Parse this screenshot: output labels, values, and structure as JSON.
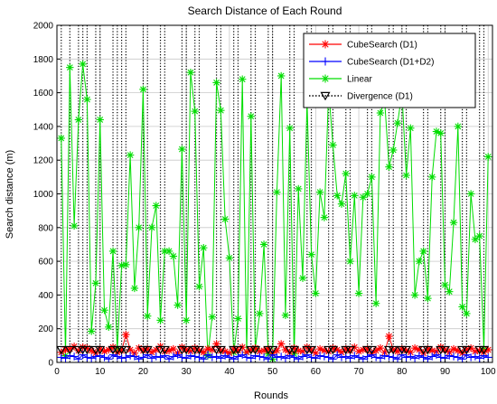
{
  "chart_data": {
    "type": "line",
    "title": "Search Distance of Each Round",
    "xlabel": "Rounds",
    "ylabel": "Search distance (m)",
    "xlim": [
      0,
      101
    ],
    "ylim": [
      0,
      2000
    ],
    "xticks": [
      0,
      10,
      20,
      30,
      40,
      50,
      60,
      70,
      80,
      90,
      100
    ],
    "yticks": [
      0,
      200,
      400,
      600,
      800,
      1000,
      1200,
      1400,
      1600,
      1800,
      2000
    ],
    "grid": true,
    "legend_position": "top-right",
    "divergence_rounds": [
      1,
      3,
      5,
      6,
      7,
      9,
      10,
      13,
      14,
      15,
      16,
      20,
      21,
      24,
      25,
      29,
      30,
      32,
      33,
      37,
      38,
      41,
      42,
      45,
      46,
      49,
      50,
      54,
      55,
      58,
      59,
      63,
      64,
      67,
      68,
      72,
      73,
      77,
      78,
      80,
      81,
      85,
      86,
      89,
      90,
      94,
      95,
      98,
      99
    ],
    "series": [
      {
        "name": "CubeSearch (D1)",
        "color": "#ff0000",
        "marker": "asterisk",
        "x": [
          1,
          2,
          3,
          4,
          5,
          6,
          7,
          8,
          9,
          10,
          11,
          12,
          13,
          14,
          15,
          16,
          17,
          18,
          19,
          20,
          21,
          22,
          23,
          24,
          25,
          26,
          27,
          28,
          29,
          30,
          31,
          32,
          33,
          34,
          35,
          36,
          37,
          38,
          39,
          40,
          41,
          42,
          43,
          44,
          45,
          46,
          47,
          48,
          49,
          50,
          51,
          52,
          53,
          54,
          55,
          56,
          57,
          58,
          59,
          60,
          61,
          62,
          63,
          64,
          65,
          66,
          67,
          68,
          69,
          70,
          71,
          72,
          73,
          74,
          75,
          76,
          77,
          78,
          79,
          80,
          81,
          82,
          83,
          84,
          85,
          86,
          87,
          88,
          89,
          90,
          91,
          92,
          93,
          94,
          95,
          96,
          97,
          98,
          99,
          100
        ],
        "values": [
          60,
          75,
          80,
          95,
          70,
          90,
          85,
          70,
          55,
          80,
          65,
          75,
          90,
          60,
          70,
          165,
          75,
          55,
          85,
          70,
          80,
          60,
          75,
          95,
          65,
          70,
          80,
          55,
          90,
          75,
          65,
          85,
          70,
          60,
          80,
          75,
          110,
          70,
          65,
          55,
          80,
          70,
          90,
          60,
          75,
          85,
          65,
          70,
          80,
          55,
          70,
          110,
          75,
          60,
          85,
          70,
          65,
          90,
          75,
          55,
          80,
          70,
          65,
          85,
          75,
          60,
          80,
          70,
          90,
          65,
          75,
          80,
          55,
          70,
          85,
          60,
          155,
          75,
          65,
          80,
          70,
          60,
          85,
          75,
          55,
          80,
          70,
          65,
          90,
          75,
          60,
          80,
          70,
          55,
          75,
          85,
          65,
          70,
          60,
          75
        ]
      },
      {
        "name": "CubeSearch (D1+D2)",
        "color": "#0000ff",
        "marker": "plus",
        "x": [
          1,
          2,
          3,
          4,
          5,
          6,
          7,
          8,
          9,
          10,
          11,
          12,
          13,
          14,
          15,
          16,
          17,
          18,
          19,
          20,
          21,
          22,
          23,
          24,
          25,
          26,
          27,
          28,
          29,
          30,
          31,
          32,
          33,
          34,
          35,
          36,
          37,
          38,
          39,
          40,
          41,
          42,
          43,
          44,
          45,
          46,
          47,
          48,
          49,
          50,
          51,
          52,
          53,
          54,
          55,
          56,
          57,
          58,
          59,
          60,
          61,
          62,
          63,
          64,
          65,
          66,
          67,
          68,
          69,
          70,
          71,
          72,
          73,
          74,
          75,
          76,
          77,
          78,
          79,
          80,
          81,
          82,
          83,
          84,
          85,
          86,
          87,
          88,
          89,
          90,
          91,
          92,
          93,
          94,
          95,
          96,
          97,
          98,
          99,
          100
        ],
        "values": [
          30,
          25,
          40,
          35,
          20,
          45,
          30,
          25,
          35,
          40,
          30,
          20,
          45,
          35,
          25,
          30,
          40,
          35,
          20,
          30,
          45,
          25,
          35,
          30,
          40,
          20,
          35,
          45,
          30,
          25,
          40,
          35,
          30,
          20,
          45,
          30,
          35,
          25,
          40,
          30,
          20,
          35,
          45,
          30,
          25,
          40,
          35,
          30,
          20,
          45,
          30,
          35,
          25,
          40,
          30,
          20,
          35,
          45,
          30,
          25,
          40,
          35,
          30,
          20,
          45,
          30,
          35,
          25,
          40,
          30,
          20,
          35,
          45,
          30,
          25,
          40,
          35,
          30,
          20,
          45,
          30,
          35,
          25,
          40,
          30,
          20,
          35,
          45,
          30,
          25,
          40,
          35,
          30,
          20,
          45,
          30,
          35,
          25,
          40,
          30
        ]
      },
      {
        "name": "Linear",
        "color": "#00dd00",
        "marker": "asterisk",
        "x": [
          1,
          2,
          3,
          4,
          5,
          6,
          7,
          8,
          9,
          10,
          11,
          12,
          13,
          14,
          15,
          16,
          17,
          18,
          19,
          20,
          21,
          22,
          23,
          24,
          25,
          26,
          27,
          28,
          29,
          30,
          31,
          32,
          33,
          34,
          35,
          36,
          37,
          38,
          39,
          40,
          41,
          42,
          43,
          44,
          45,
          46,
          47,
          48,
          49,
          50,
          51,
          52,
          53,
          54,
          55,
          56,
          57,
          58,
          59,
          60,
          61,
          62,
          63,
          64,
          65,
          66,
          67,
          68,
          69,
          70,
          71,
          72,
          73,
          74,
          75,
          76,
          77,
          78,
          79,
          80,
          81,
          82,
          83,
          84,
          85,
          86,
          87,
          88,
          89,
          90,
          91,
          92,
          93,
          94,
          95,
          96,
          97,
          98,
          99,
          100
        ],
        "values": [
          1330,
          40,
          1750,
          810,
          1440,
          1770,
          1560,
          185,
          470,
          1440,
          310,
          210,
          660,
          80,
          575,
          580,
          1230,
          440,
          800,
          1620,
          275,
          800,
          930,
          250,
          660,
          660,
          630,
          340,
          1265,
          250,
          1720,
          1490,
          450,
          680,
          40,
          270,
          1660,
          1495,
          850,
          620,
          60,
          260,
          1680,
          60,
          1460,
          80,
          290,
          700,
          50,
          20,
          1010,
          1700,
          280,
          1390,
          50,
          1030,
          500,
          1550,
          640,
          410,
          1010,
          860,
          1620,
          1290,
          990,
          940,
          1120,
          600,
          990,
          410,
          980,
          1000,
          1100,
          350,
          1480,
          1550,
          1160,
          1260,
          1420,
          1600,
          1110,
          1390,
          400,
          600,
          660,
          380,
          1100,
          1370,
          1360,
          460,
          420,
          830,
          1400,
          330,
          290,
          1000,
          730,
          750,
          80,
          1220
        ]
      }
    ],
    "legend": [
      {
        "label": "CubeSearch (D1)",
        "color": "#ff0000",
        "marker": "asterisk",
        "line": "solid"
      },
      {
        "label": "CubeSearch (D1+D2)",
        "color": "#0000ff",
        "marker": "plus",
        "line": "solid"
      },
      {
        "label": "Linear",
        "color": "#00dd00",
        "marker": "asterisk",
        "line": "solid"
      },
      {
        "label": "Divergence (D1)",
        "color": "#000000",
        "marker": "triangle-down",
        "line": "dotted"
      }
    ]
  }
}
